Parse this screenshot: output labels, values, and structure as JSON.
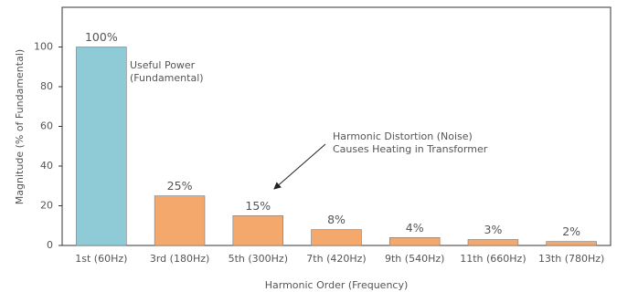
{
  "chart_data": {
    "type": "bar",
    "x_label": "Harmonic Order (Frequency)",
    "y_label": "Magnitude (% of Fundamental)",
    "categories": [
      "1st (60Hz)",
      "3rd (180Hz)",
      "5th (300Hz)",
      "7th (420Hz)",
      "9th (540Hz)",
      "11th (660Hz)",
      "13th (780Hz)"
    ],
    "values": [
      100,
      25,
      15,
      8,
      4,
      3,
      2
    ],
    "value_labels": [
      "100%",
      "25%",
      "15%",
      "8%",
      "4%",
      "3%",
      "2%"
    ],
    "colors": [
      "#8ecbd6",
      "#f5a86c",
      "#f5a86c",
      "#f5a86c",
      "#f5a86c",
      "#f5a86c",
      "#f5a86c"
    ],
    "ylim": [
      0,
      120
    ],
    "yticks": [
      0,
      20,
      40,
      60,
      80,
      100
    ],
    "grid": false,
    "annotations": [
      {
        "lines": [
          "Useful Power",
          "(Fundamental)"
        ]
      },
      {
        "lines": [
          "Harmonic Distortion (Noise)",
          "Causes Heating in Transformer"
        ]
      }
    ]
  }
}
